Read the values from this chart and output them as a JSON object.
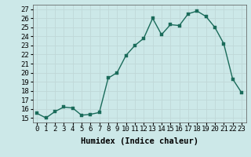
{
  "x": [
    0,
    1,
    2,
    3,
    4,
    5,
    6,
    7,
    8,
    9,
    10,
    11,
    12,
    13,
    14,
    15,
    16,
    17,
    18,
    19,
    20,
    21,
    22,
    23
  ],
  "y": [
    15.5,
    15.0,
    15.7,
    16.2,
    16.1,
    15.3,
    15.4,
    15.6,
    19.4,
    20.0,
    21.9,
    23.0,
    23.8,
    26.0,
    24.2,
    25.3,
    25.2,
    26.5,
    26.8,
    26.2,
    25.0,
    23.2,
    19.3,
    17.8
  ],
  "xlabel": "Humidex (Indice chaleur)",
  "ylim": [
    14.5,
    27.5
  ],
  "xlim": [
    -0.5,
    23.5
  ],
  "yticks": [
    15,
    16,
    17,
    18,
    19,
    20,
    21,
    22,
    23,
    24,
    25,
    26,
    27
  ],
  "xtick_labels": [
    "0",
    "1",
    "2",
    "3",
    "4",
    "5",
    "6",
    "7",
    "8",
    "9",
    "10",
    "11",
    "12",
    "13",
    "14",
    "15",
    "16",
    "17",
    "18",
    "19",
    "20",
    "21",
    "22",
    "23"
  ],
  "line_color": "#1a6b5a",
  "marker_color": "#1a6b5a",
  "bg_color": "#cce8e8",
  "grid_color": "#c0d8d8",
  "xlabel_fontsize": 7.5,
  "tick_fontsize": 6.5,
  "line_width": 1.0,
  "marker_size": 2.5
}
